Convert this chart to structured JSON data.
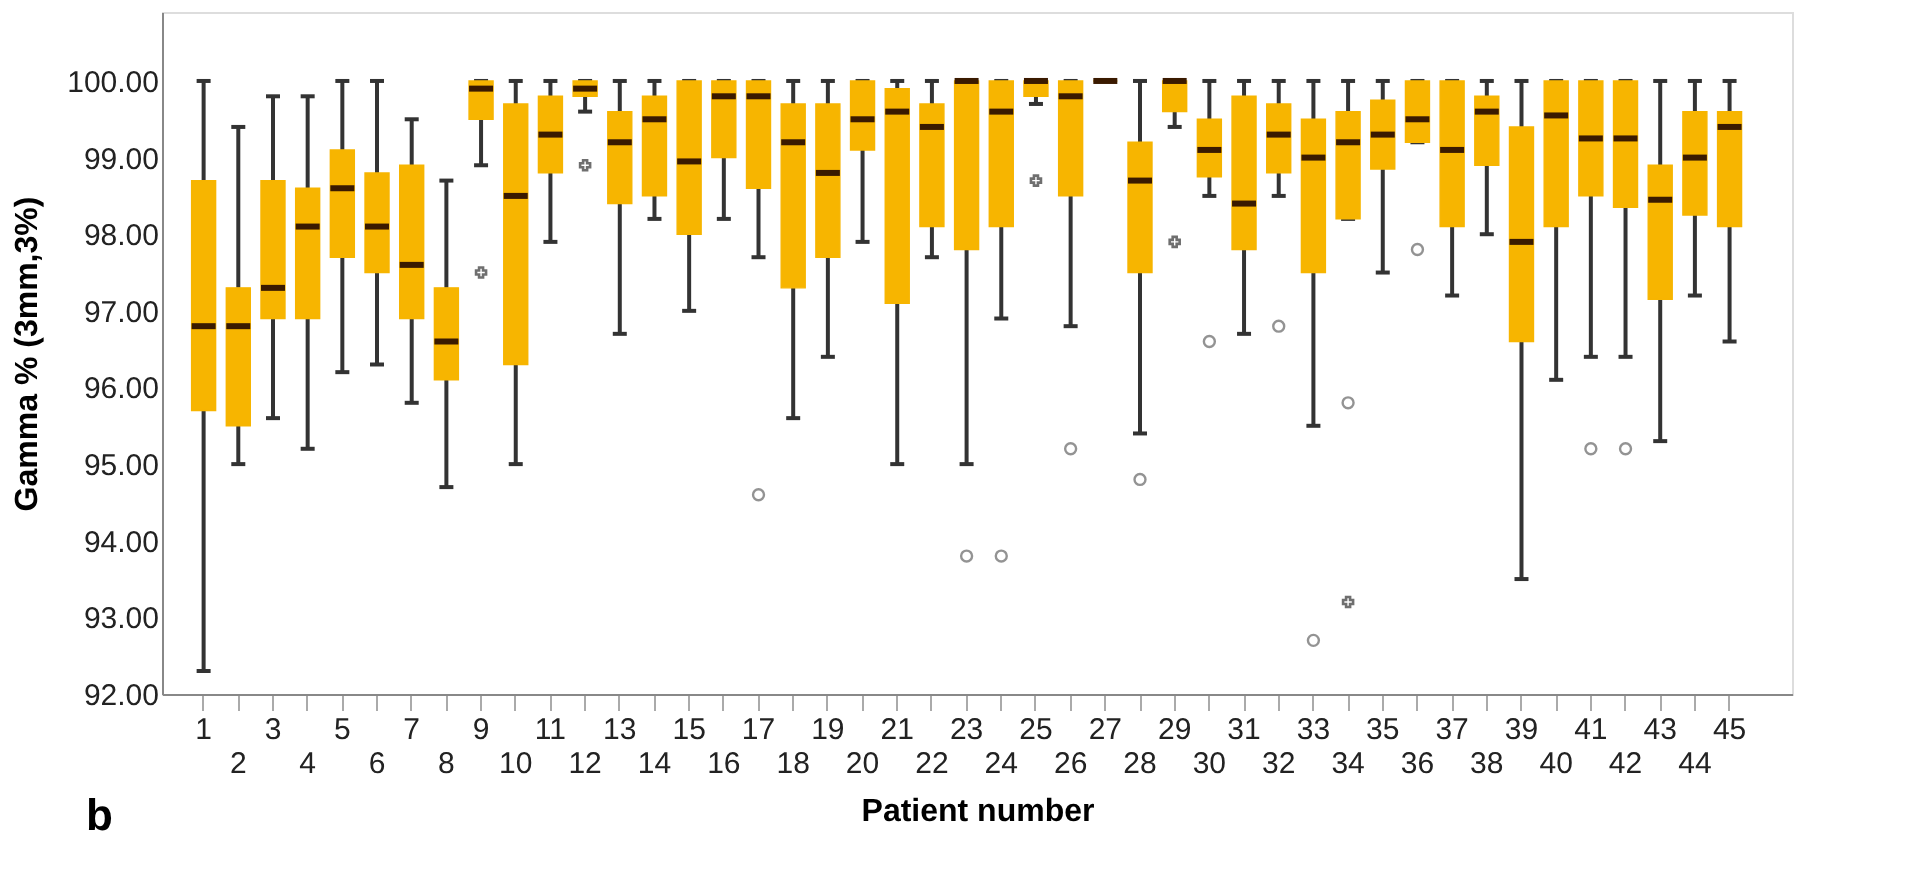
{
  "chart_data": {
    "type": "box",
    "xlabel": "Patient number",
    "ylabel": "Gamma % (3mm,3%)",
    "annotations": [
      "b"
    ],
    "categories": [
      "1",
      "2",
      "3",
      "4",
      "5",
      "6",
      "7",
      "8",
      "9",
      "10",
      "11",
      "12",
      "13",
      "14",
      "15",
      "16",
      "17",
      "18",
      "19",
      "20",
      "21",
      "22",
      "23",
      "24",
      "25",
      "26",
      "27",
      "28",
      "29",
      "30",
      "31",
      "32",
      "33",
      "34",
      "35",
      "36",
      "37",
      "38",
      "39",
      "40",
      "41",
      "42",
      "43",
      "44",
      "45"
    ],
    "ylim": [
      92,
      100.9
    ],
    "yticks": [
      {
        "value": 92,
        "label": "92.00"
      },
      {
        "value": 93,
        "label": "93.00"
      },
      {
        "value": 94,
        "label": "94.00"
      },
      {
        "value": 95,
        "label": "95.00"
      },
      {
        "value": 96,
        "label": "96.00"
      },
      {
        "value": 97,
        "label": "97.00"
      },
      {
        "value": 98,
        "label": "98.00"
      },
      {
        "value": 99,
        "label": "99.00"
      },
      {
        "value": 100,
        "label": "100.00"
      }
    ],
    "grid": false,
    "series": [
      {
        "color": "#f7b500",
        "boxes": [
          {
            "low": 92.3,
            "q1": 95.7,
            "median": 96.8,
            "q3": 98.7,
            "high": 100
          },
          {
            "low": 95.0,
            "q1": 95.5,
            "median": 96.8,
            "q3": 97.3,
            "high": 99.4
          },
          {
            "low": 95.6,
            "q1": 96.9,
            "median": 97.3,
            "q3": 98.7,
            "high": 99.8
          },
          {
            "low": 95.2,
            "q1": 96.9,
            "median": 98.1,
            "q3": 98.6,
            "high": 99.8
          },
          {
            "low": 96.2,
            "q1": 97.7,
            "median": 98.6,
            "q3": 99.1,
            "high": 100
          },
          {
            "low": 96.3,
            "q1": 97.5,
            "median": 98.1,
            "q3": 98.8,
            "high": 100
          },
          {
            "low": 95.8,
            "q1": 96.9,
            "median": 97.6,
            "q3": 98.9,
            "high": 99.5
          },
          {
            "low": 94.7,
            "q1": 96.1,
            "median": 96.6,
            "q3": 97.3,
            "high": 98.7
          },
          {
            "low": 98.9,
            "q1": 99.5,
            "median": 99.9,
            "q3": 100,
            "high": 100
          },
          {
            "low": 95.0,
            "q1": 96.3,
            "median": 98.5,
            "q3": 99.7,
            "high": 100
          },
          {
            "low": 97.9,
            "q1": 98.8,
            "median": 99.3,
            "q3": 99.8,
            "high": 100
          },
          {
            "low": 99.6,
            "q1": 99.8,
            "median": 99.9,
            "q3": 100,
            "high": 100
          },
          {
            "low": 96.7,
            "q1": 98.4,
            "median": 99.2,
            "q3": 99.6,
            "high": 100
          },
          {
            "low": 98.2,
            "q1": 98.5,
            "median": 99.5,
            "q3": 99.8,
            "high": 100
          },
          {
            "low": 97.0,
            "q1": 98.0,
            "median": 98.95,
            "q3": 100,
            "high": 100
          },
          {
            "low": 98.2,
            "q1": 99.0,
            "median": 99.8,
            "q3": 100,
            "high": 100
          },
          {
            "low": 97.7,
            "q1": 98.6,
            "median": 99.8,
            "q3": 100,
            "high": 100,
            "outliers": [
              94.6
            ]
          },
          {
            "low": 95.6,
            "q1": 97.3,
            "median": 99.2,
            "q3": 99.7,
            "high": 100
          },
          {
            "low": 96.4,
            "q1": 97.7,
            "median": 98.8,
            "q3": 99.7,
            "high": 100
          },
          {
            "low": 97.9,
            "q1": 99.1,
            "median": 99.5,
            "q3": 100,
            "high": 100
          },
          {
            "low": 95.0,
            "q1": 97.1,
            "median": 99.6,
            "q3": 99.9,
            "high": 100
          },
          {
            "low": 97.7,
            "q1": 98.1,
            "median": 99.4,
            "q3": 99.7,
            "high": 100
          },
          {
            "low": 95.0,
            "q1": 97.8,
            "median": 100,
            "q3": 100,
            "high": 100,
            "outliers": [
              93.8
            ]
          },
          {
            "low": 96.9,
            "q1": 98.1,
            "median": 99.6,
            "q3": 100,
            "high": 100,
            "outliers": [
              93.8
            ]
          },
          {
            "low": 99.7,
            "q1": 99.8,
            "median": 100,
            "q3": 100,
            "high": 100
          },
          {
            "low": 96.8,
            "q1": 98.5,
            "median": 99.8,
            "q3": 100,
            "high": 100,
            "outliers": [
              95.2
            ]
          },
          {
            "low": 100,
            "q1": 100,
            "median": 100,
            "q3": 100,
            "high": 100
          },
          {
            "low": 95.4,
            "q1": 97.5,
            "median": 98.7,
            "q3": 99.2,
            "high": 100,
            "outliers": [
              94.8
            ]
          },
          {
            "low": 99.4,
            "q1": 99.6,
            "median": 100,
            "q3": 100,
            "high": 100
          },
          {
            "low": 98.5,
            "q1": 98.75,
            "median": 99.1,
            "q3": 99.5,
            "high": 100,
            "outliers": [
              96.6
            ]
          },
          {
            "low": 96.7,
            "q1": 97.8,
            "median": 98.4,
            "q3": 99.8,
            "high": 100
          },
          {
            "low": 98.5,
            "q1": 98.8,
            "median": 99.3,
            "q3": 99.7,
            "high": 100,
            "outliers": [
              96.8
            ]
          },
          {
            "low": 95.5,
            "q1": 97.5,
            "median": 99.0,
            "q3": 99.5,
            "high": 100,
            "outliers": [
              92.7
            ]
          },
          {
            "low": 98.2,
            "q1": 98.2,
            "median": 99.2,
            "q3": 99.6,
            "high": 100,
            "outliers": [
              95.8
            ]
          },
          {
            "low": 97.5,
            "q1": 98.85,
            "median": 99.3,
            "q3": 99.75,
            "high": 100
          },
          {
            "low": 99.2,
            "q1": 99.2,
            "median": 99.5,
            "q3": 100,
            "high": 100,
            "outliers": [
              97.8
            ]
          },
          {
            "low": 97.2,
            "q1": 98.1,
            "median": 99.1,
            "q3": 100,
            "high": 100
          },
          {
            "low": 98.0,
            "q1": 98.9,
            "median": 99.6,
            "q3": 99.8,
            "high": 100
          },
          {
            "low": 93.5,
            "q1": 96.6,
            "median": 97.9,
            "q3": 99.4,
            "high": 100
          },
          {
            "low": 96.1,
            "q1": 98.1,
            "median": 99.55,
            "q3": 100,
            "high": 100
          },
          {
            "low": 96.4,
            "q1": 98.5,
            "median": 99.25,
            "q3": 100,
            "high": 100,
            "outliers": [
              95.2
            ]
          },
          {
            "low": 96.4,
            "q1": 98.35,
            "median": 99.25,
            "q3": 100,
            "high": 100,
            "outliers": [
              95.2
            ]
          },
          {
            "low": 95.3,
            "q1": 97.15,
            "median": 98.45,
            "q3": 98.9,
            "high": 100
          },
          {
            "low": 97.2,
            "q1": 98.25,
            "median": 99.0,
            "q3": 99.6,
            "high": 100
          },
          {
            "low": 96.6,
            "q1": 98.1,
            "median": 99.4,
            "q3": 99.6,
            "high": 100
          }
        ]
      },
      {
        "type": "scatter",
        "marker": "cross",
        "color": "#333333",
        "x": [
          "9",
          "12",
          "25",
          "29",
          "34"
        ],
        "values": [
          97.5,
          98.9,
          98.7,
          97.9,
          93.2
        ]
      }
    ]
  }
}
